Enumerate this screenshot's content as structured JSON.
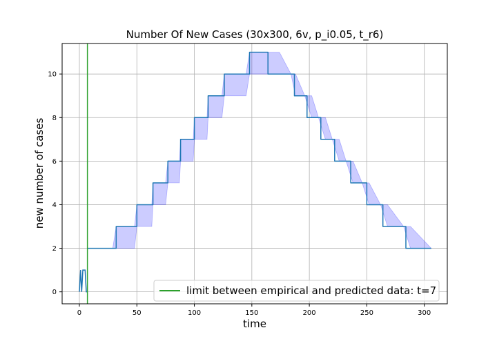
{
  "chart_data": {
    "type": "line",
    "title": "Number Of New Cases (30x300, 6v, p_i0.05, t_r6)",
    "xlabel": "time",
    "ylabel": "new number of cases",
    "xlim": [
      -15,
      320
    ],
    "ylim": [
      -0.55,
      11.4
    ],
    "xticks": [
      0,
      50,
      100,
      150,
      200,
      250,
      300
    ],
    "yticks": [
      0,
      2,
      4,
      6,
      8,
      10
    ],
    "grid": true,
    "legend": {
      "position": "bottom-right",
      "entries": [
        "limit between empirical and predicted data: t=7"
      ]
    },
    "colors": {
      "series": "#1f77b4",
      "band": "#0000ff",
      "band_opacity": 0.2,
      "limit_line": "#2ca02c",
      "grid": "#b0b0b0"
    },
    "empirical": {
      "x": [
        0,
        1,
        2,
        3,
        4,
        5,
        6,
        7
      ],
      "y": [
        0,
        1,
        0,
        1,
        1,
        1,
        0,
        0
      ]
    },
    "limit": {
      "x": 7,
      "label": "limit between empirical and predicted data: t=7"
    },
    "series": [
      {
        "x": [
          7,
          32,
          32,
          50,
          50,
          64,
          64,
          77,
          77,
          88,
          88,
          100,
          100,
          112,
          112,
          126,
          126,
          148,
          148,
          164,
          164,
          187,
          187,
          198,
          198,
          210,
          210,
          222,
          222,
          236,
          236,
          250,
          250,
          264,
          264,
          284,
          284,
          306
        ],
        "y": [
          2,
          2,
          3,
          3,
          4,
          4,
          5,
          5,
          6,
          6,
          7,
          7,
          8,
          8,
          9,
          9,
          10,
          10,
          11,
          11,
          10,
          10,
          9,
          9,
          8,
          8,
          7,
          7,
          6,
          6,
          5,
          5,
          4,
          4,
          3,
          3,
          2,
          2
        ]
      }
    ],
    "band": {
      "x": [
        7,
        29,
        32,
        48,
        50,
        63,
        64,
        75,
        77,
        87,
        88,
        99,
        100,
        111,
        112,
        124,
        126,
        145,
        148,
        164,
        174,
        184,
        188,
        196,
        202,
        208,
        214,
        220,
        226,
        232,
        238,
        246,
        252,
        262,
        268,
        282,
        288,
        306
      ],
      "lower": [
        2,
        2,
        2,
        2,
        3,
        3,
        4,
        4,
        5,
        5,
        6,
        6,
        7,
        7,
        8,
        8,
        9,
        9,
        10,
        10,
        10,
        10,
        9,
        9,
        8,
        8,
        7,
        7,
        6,
        6,
        5,
        5,
        4,
        4,
        3,
        3,
        2,
        2
      ],
      "upper": [
        2,
        2,
        3,
        3,
        4,
        4,
        5,
        5,
        6,
        6,
        7,
        7,
        8,
        8,
        9,
        9,
        10,
        10,
        11,
        11,
        11,
        10,
        10,
        9,
        9,
        8,
        8,
        7,
        7,
        6,
        6,
        5,
        5,
        4,
        4,
        3,
        3,
        2
      ]
    }
  }
}
